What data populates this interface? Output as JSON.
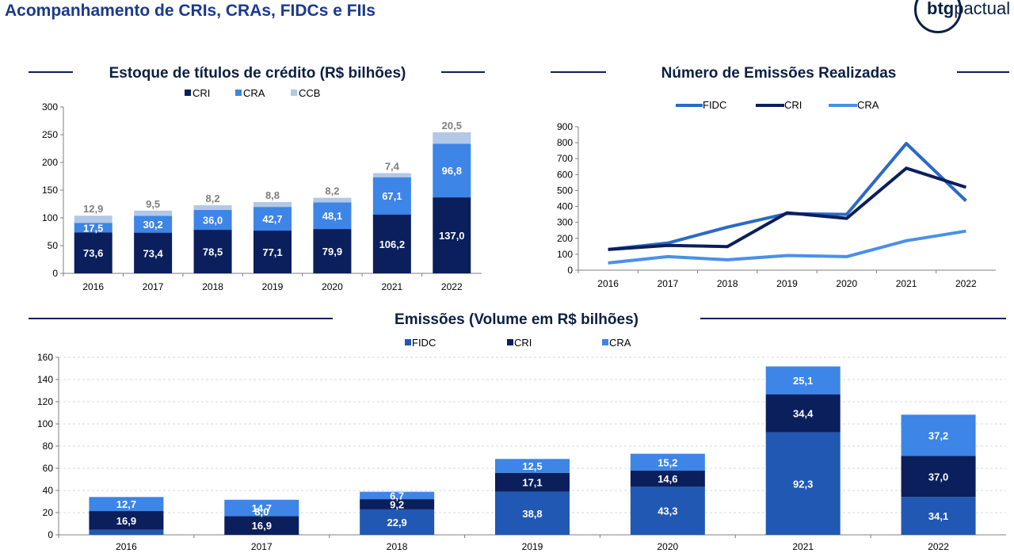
{
  "header": {
    "title": "Acompanhamento de CRIs, CRAs, FIDCs e FIIs",
    "logo_bold": "btg",
    "logo_light": "pactual"
  },
  "colors": {
    "navy": "#0a1f5c",
    "mid_blue": "#3d85e6",
    "light_blue": "#b3c7e6",
    "fidc_blue": "#2158b3",
    "line_fidc": "#2a6bc4",
    "line_cri": "#0a1f5c",
    "line_cra": "#4a90e8",
    "rule": "#0a1f5c",
    "grey_label": "#7f7f7f"
  },
  "chart_data": [
    {
      "id": "estoque",
      "type": "bar",
      "stacked": true,
      "title": "Estoque de títulos de crédito (R$ bilhões)",
      "categories": [
        "2016",
        "2017",
        "2018",
        "2019",
        "2020",
        "2021",
        "2022"
      ],
      "series": [
        {
          "name": "CRI",
          "values": [
            73.6,
            73.4,
            78.5,
            77.1,
            79.9,
            106.2,
            137.0
          ],
          "labels": [
            "73,6",
            "73,4",
            "78,5",
            "77,1",
            "79,9",
            "106,2",
            "137,0"
          ]
        },
        {
          "name": "CRA",
          "values": [
            17.5,
            30.2,
            36.0,
            42.7,
            48.1,
            67.1,
            96.8
          ],
          "labels": [
            "17,5",
            "30,2",
            "36,0",
            "42,7",
            "48,1",
            "67,1",
            "96,8"
          ]
        },
        {
          "name": "CCB",
          "values": [
            12.9,
            9.5,
            8.2,
            8.8,
            8.2,
            7.4,
            20.5
          ],
          "labels": [
            "12,9",
            "9,5",
            "8,2",
            "8,8",
            "8,2",
            "7,4",
            "20,5"
          ]
        }
      ],
      "ylim": [
        0,
        300
      ],
      "yticks": [
        "0",
        "50",
        "100",
        "150",
        "200",
        "250",
        "300"
      ],
      "legend": "top"
    },
    {
      "id": "numero",
      "type": "line",
      "title": "Número de Emissões Realizadas",
      "x": [
        "2016",
        "2017",
        "2018",
        "2019",
        "2020",
        "2021",
        "2022"
      ],
      "series": [
        {
          "name": "FIDC",
          "values": [
            130,
            170,
            270,
            355,
            350,
            795,
            435
          ]
        },
        {
          "name": "CRI",
          "values": [
            130,
            155,
            148,
            360,
            325,
            640,
            520
          ]
        },
        {
          "name": "CRA",
          "values": [
            45,
            85,
            65,
            92,
            85,
            185,
            245
          ]
        }
      ],
      "ylim": [
        0,
        900
      ],
      "yticks": [
        "0",
        "100",
        "200",
        "300",
        "400",
        "500",
        "600",
        "700",
        "800",
        "900"
      ],
      "legend": "top",
      "grid": false
    },
    {
      "id": "emissoes",
      "type": "bar",
      "stacked": true,
      "title": "Emissões (Volume em R$ bilhões)",
      "categories": [
        "2016",
        "2017",
        "2018",
        "2019",
        "2020",
        "2021",
        "2022"
      ],
      "series": [
        {
          "name": "FIDC",
          "values": [
            4.5,
            0,
            22.9,
            38.8,
            43.3,
            92.3,
            34.1
          ],
          "labels": [
            "",
            "",
            "22,9",
            "38,8",
            "43,3",
            "92,3",
            "34,1"
          ]
        },
        {
          "name": "CRI",
          "values": [
            16.9,
            16.9,
            9.2,
            17.1,
            14.6,
            34.4,
            37.0
          ],
          "labels": [
            "16,9",
            "16,9",
            "9,2",
            "17,1",
            "14,6",
            "34,4",
            "37,0"
          ]
        },
        {
          "name": "CRA",
          "values": [
            12.7,
            14.7,
            6.7,
            12.5,
            15.2,
            25.1,
            37.2
          ],
          "labels": [
            "12,7",
            "14,7",
            "6,7",
            "12,5",
            "15,2",
            "25,1",
            "37,2"
          ]
        }
      ],
      "extra_labels": [
        {
          "category": "2017",
          "value": 8.0,
          "label": "8,0"
        }
      ],
      "ylim": [
        0,
        160
      ],
      "yticks": [
        "0",
        "20",
        "40",
        "60",
        "80",
        "100",
        "120",
        "140",
        "160"
      ],
      "legend": "top",
      "grid": true
    }
  ]
}
